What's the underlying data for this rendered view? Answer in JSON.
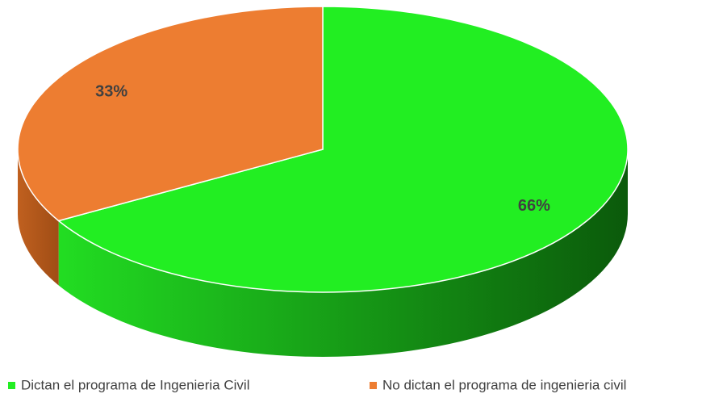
{
  "chart_data": {
    "type": "pie",
    "categories": [
      "Dictan el programa de Ingenieria Civil",
      "No dictan el programa de ingenieria civil"
    ],
    "values": [
      66,
      33
    ],
    "value_labels": [
      "66%",
      "33%"
    ],
    "colors": [
      "#22ee22",
      "#ed7d31"
    ],
    "legend": "bottom"
  }
}
